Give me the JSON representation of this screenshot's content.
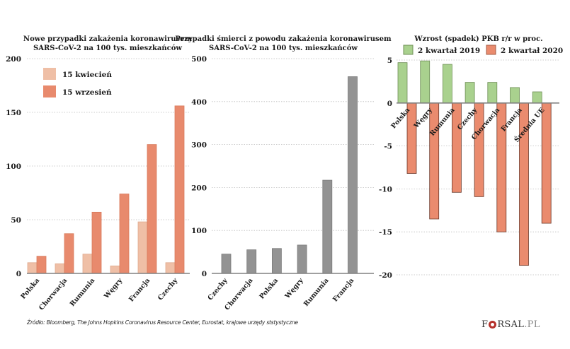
{
  "colors": {
    "april": "#efbfa6",
    "september": "#e88a6d",
    "deaths": "#939393",
    "q2_2019": "#a9d18e",
    "q2_2020": "#ea8b6e",
    "grid": "#bdbdbd",
    "axis": "#808080"
  },
  "chart_data": [
    {
      "type": "bar",
      "title": "Nowe przypadki zakażenia koronawirusem",
      "subtitle": "SARS-CoV-2 na 100 tys. mieszkańców",
      "categories": [
        "Polska",
        "Chorwacja",
        "Rumunia",
        "Węgry",
        "Francja",
        "Czechy"
      ],
      "series": [
        {
          "name": "15 kwiecień",
          "values": [
            10,
            9,
            18,
            7,
            48,
            10
          ]
        },
        {
          "name": "15 wrzesień",
          "values": [
            16,
            37,
            57,
            74,
            120,
            156
          ]
        }
      ],
      "yticks": [
        0,
        50,
        100,
        150,
        200
      ],
      "ylim": [
        0,
        200
      ],
      "grid": true,
      "legend": "top-left"
    },
    {
      "type": "bar",
      "title": "Przypadki śmierci z powodu zakażenia koronawirusem",
      "subtitle": "SARS-CoV-2 na 100 tys. mieszkańców",
      "categories": [
        "Czechy",
        "Chorwacja",
        "Polska",
        "Węgry",
        "Rumunia",
        "Francja"
      ],
      "series": [
        {
          "name": "Przypadki śmierci",
          "values": [
            45,
            55,
            58,
            66,
            217,
            458
          ]
        }
      ],
      "yticks": [
        0,
        100,
        200,
        300,
        400,
        500
      ],
      "ylim": [
        0,
        500
      ],
      "grid": true
    },
    {
      "type": "bar",
      "title": "Wzrost (spadek) PKB r/r w proc.",
      "subtitle": "",
      "categories": [
        "Polska",
        "Węgry",
        "Rumunia",
        "Czechy",
        "Chorwacja",
        "Francja",
        "Średnia UE"
      ],
      "series": [
        {
          "name": "2 kwartał 2019",
          "values": [
            4.7,
            4.9,
            4.5,
            2.4,
            2.4,
            1.8,
            1.3
          ]
        },
        {
          "name": "2 kwartał 2020",
          "values": [
            -8.2,
            -13.5,
            -10.4,
            -10.9,
            -15.0,
            -18.9,
            -14.0
          ]
        }
      ],
      "yticks": [
        5,
        0,
        -5,
        -10,
        -15,
        -20
      ],
      "ylim": [
        -20,
        5
      ],
      "grid": true,
      "legend": "top"
    }
  ],
  "footer": {
    "source": "Źródło:  Bloomberg, The Johns Hopkins Coronavirus Resource Center, Eurostat, krajowe urzędy ststystyczne",
    "logo_left": "F",
    "logo_right": "RSAL",
    "logo_tld": ".PL"
  }
}
